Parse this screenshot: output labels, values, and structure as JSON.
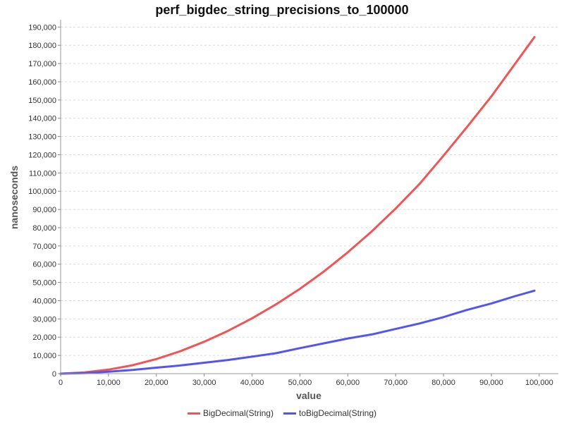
{
  "chart_data": {
    "type": "line",
    "title": "perf_bigdec_string_precisions_to_100000",
    "xlabel": "value",
    "ylabel": "nanoseconds",
    "xlim": [
      0,
      104000
    ],
    "ylim": [
      0,
      194000
    ],
    "x_ticks": [
      0,
      10000,
      20000,
      30000,
      40000,
      50000,
      60000,
      70000,
      80000,
      90000,
      100000
    ],
    "x_tick_labels": [
      "0",
      "10,000",
      "20,000",
      "30,000",
      "40,000",
      "50,000",
      "60,000",
      "70,000",
      "80,000",
      "90,000",
      "100,000"
    ],
    "y_ticks": [
      0,
      10000,
      20000,
      30000,
      40000,
      50000,
      60000,
      70000,
      80000,
      90000,
      100000,
      110000,
      120000,
      130000,
      140000,
      150000,
      160000,
      170000,
      180000,
      190000
    ],
    "y_tick_labels": [
      "0",
      "10,000",
      "20,000",
      "30,000",
      "40,000",
      "50,000",
      "60,000",
      "70,000",
      "80,000",
      "90,000",
      "100,000",
      "110,000",
      "120,000",
      "130,000",
      "140,000",
      "150,000",
      "160,000",
      "170,000",
      "180,000",
      "190,000"
    ],
    "grid": true,
    "legend_position": "bottom",
    "series": [
      {
        "name": "BigDecimal(String)",
        "color": "#f15454",
        "x": [
          0,
          5000,
          10000,
          15000,
          20000,
          25000,
          30000,
          35000,
          40000,
          45000,
          50000,
          55000,
          60000,
          65000,
          70000,
          75000,
          80000,
          85000,
          90000,
          95000,
          99000
        ],
        "y": [
          0,
          700,
          2200,
          4600,
          8000,
          12300,
          17500,
          23500,
          30300,
          38000,
          46500,
          56000,
          66500,
          78000,
          90500,
          104000,
          119500,
          135500,
          152000,
          170000,
          184500
        ]
      },
      {
        "name": "toBigDecimal(String)",
        "color": "#5454f1",
        "x": [
          0,
          5000,
          10000,
          15000,
          20000,
          25000,
          30000,
          35000,
          40000,
          45000,
          50000,
          55000,
          60000,
          65000,
          70000,
          75000,
          80000,
          85000,
          90000,
          95000,
          99000
        ],
        "y": [
          0,
          300,
          1100,
          2000,
          3300,
          4500,
          6000,
          7500,
          9300,
          11200,
          14000,
          16600,
          19300,
          21500,
          24500,
          27500,
          31000,
          35000,
          38500,
          42500,
          45500
        ]
      }
    ]
  }
}
